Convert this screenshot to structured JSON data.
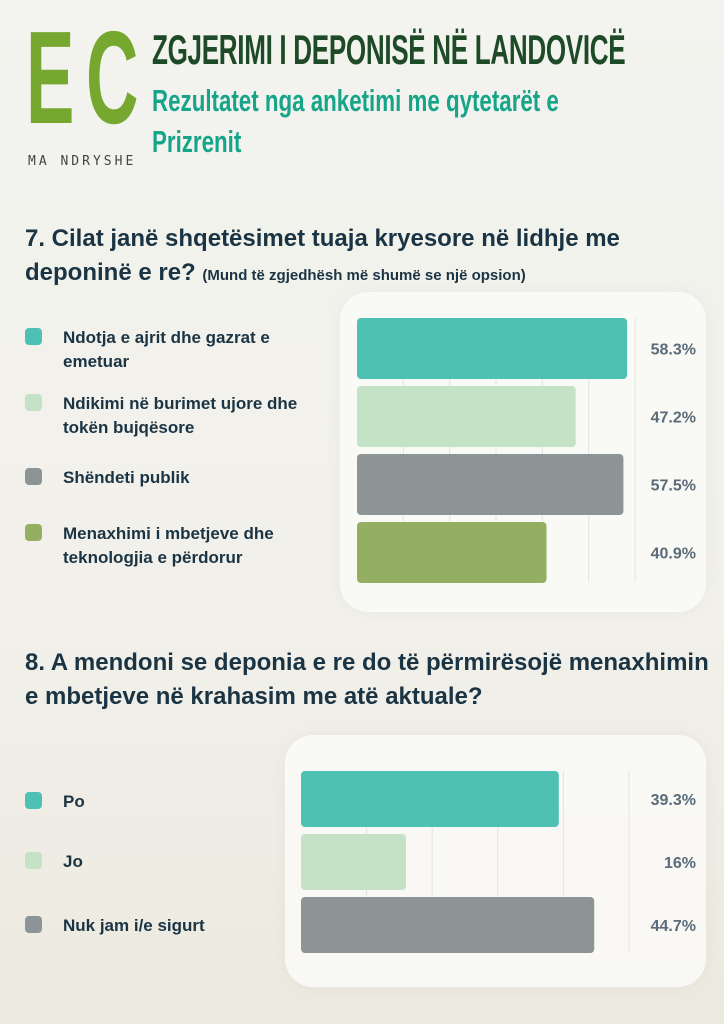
{
  "logo": {
    "letters": "EC",
    "tagline": "MA NDRYSHE"
  },
  "header": {
    "title": "ZGJERIMI I DEPONISË NË LANDOVICË",
    "subtitle": "Rezultatet nga anketimi me qytetarët e Prizrenit"
  },
  "colors": {
    "teal": "#4fc1b4",
    "light_green": "#c3e2c6",
    "gray": "#8c9496",
    "olive": "#94af62",
    "text": "#1b3444"
  },
  "chart_data": [
    {
      "type": "bar",
      "orientation": "horizontal",
      "title": "7. Cilat janë shqetësimet tuaja kryesore në lidhje me deponinë e re?",
      "note": "(Mund të zgjedhësh më shumë se një opsion)",
      "categories": [
        "Ndotja e ajrit dhe gazrat e emetuar",
        "Ndikimi në burimet ujore dhe tokën bujqësore",
        "Shëndeti publik",
        "Menaxhimi i mbetjeve dhe teknologjia e përdorur"
      ],
      "values": [
        58.3,
        47.2,
        57.5,
        40.9
      ],
      "labels": [
        "58.3%",
        "47.2%",
        "57.5%",
        "40.9%"
      ],
      "bar_colors": [
        "#4fc1b4",
        "#c3e2c6",
        "#8c9496",
        "#94af62"
      ],
      "xlim": [
        0,
        60
      ],
      "grid": true,
      "legend": "left"
    },
    {
      "type": "bar",
      "orientation": "horizontal",
      "title": "8. A mendoni se deponia e re do të përmirësojë menaxhimin e mbetjeve në krahasim me atë aktuale?",
      "categories": [
        "Po",
        "Jo",
        "Nuk jam i/e sigurt"
      ],
      "values": [
        39.3,
        16,
        44.7
      ],
      "labels": [
        "39.3%",
        "16%",
        "44.7%"
      ],
      "bar_colors": [
        "#4fc1b4",
        "#c3e2c6",
        "#8c9496"
      ],
      "xlim": [
        0,
        50
      ],
      "grid": true,
      "legend": "left"
    }
  ]
}
